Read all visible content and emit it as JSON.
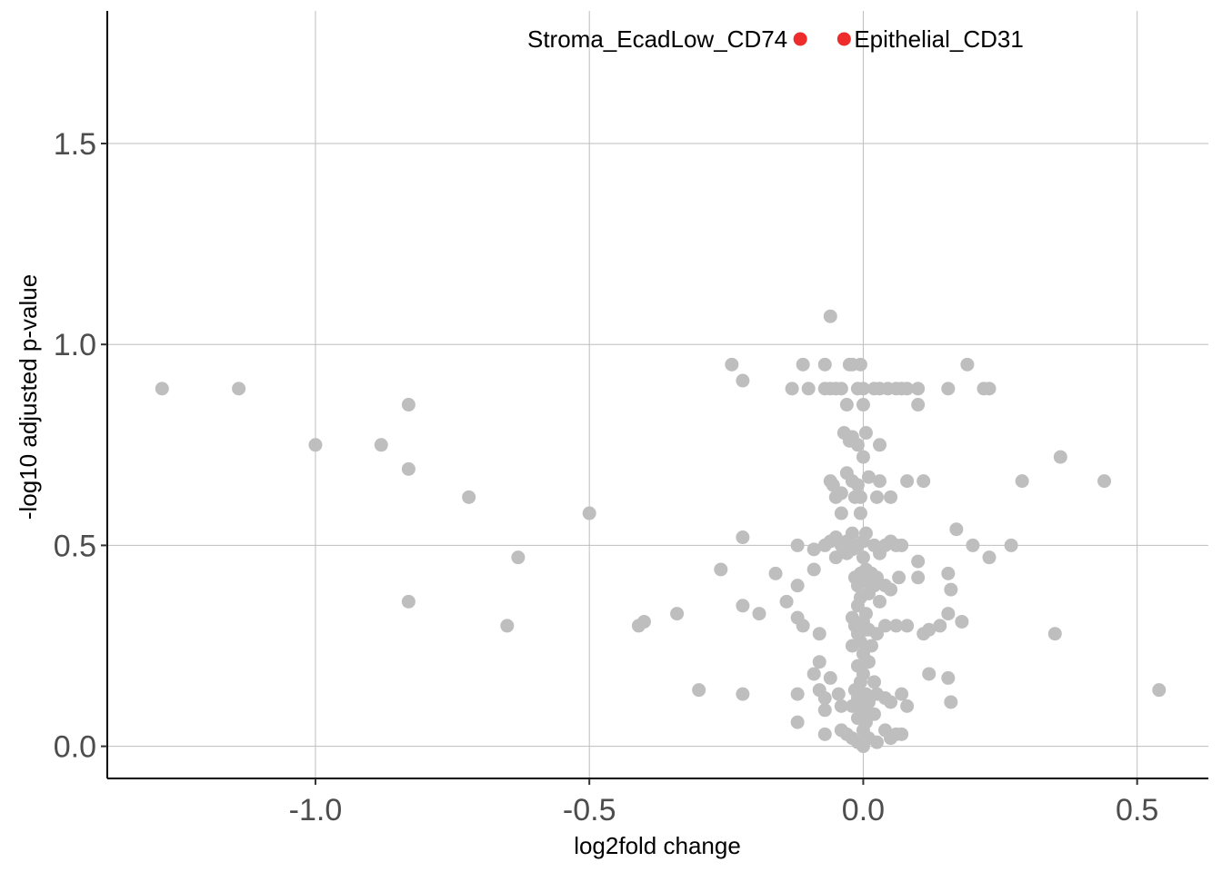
{
  "chart_data": {
    "type": "scatter",
    "xlabel": "log2fold change",
    "ylabel": "-log10 adjusted p-value",
    "xlim": [
      -1.38,
      0.63
    ],
    "ylim": [
      -0.08,
      1.83
    ],
    "x_ticks": [
      -1.0,
      -0.5,
      0.0,
      0.5
    ],
    "x_tick_labels": [
      "-1.0",
      "-0.5",
      "0.0",
      "0.5"
    ],
    "y_ticks": [
      0.0,
      0.5,
      1.0,
      1.5
    ],
    "y_tick_labels": [
      "0.0",
      "0.5",
      "1.0",
      "1.5"
    ],
    "grid": true,
    "colors": {
      "background": "#ffffff",
      "grid": "#bebebe",
      "axis": "#000000",
      "point": "#bebebe",
      "highlight": "#ee2c2c",
      "tick_text": "#4d4d4d"
    },
    "series": [
      {
        "color": "#bebebe",
        "points": [
          [
            -1.28,
            0.89
          ],
          [
            -1.14,
            0.89
          ],
          [
            -1.0,
            0.75
          ],
          [
            -0.88,
            0.75
          ],
          [
            -0.83,
            0.85
          ],
          [
            -0.83,
            0.69
          ],
          [
            -0.83,
            0.36
          ],
          [
            -0.72,
            0.62
          ],
          [
            -0.65,
            0.3
          ],
          [
            -0.63,
            0.47
          ],
          [
            -0.5,
            0.58
          ],
          [
            -0.41,
            0.3
          ],
          [
            -0.4,
            0.31
          ],
          [
            -0.34,
            0.33
          ],
          [
            -0.3,
            0.14
          ],
          [
            -0.26,
            0.44
          ],
          [
            -0.24,
            0.95
          ],
          [
            -0.22,
            0.91
          ],
          [
            -0.22,
            0.52
          ],
          [
            -0.22,
            0.35
          ],
          [
            -0.22,
            0.13
          ],
          [
            -0.19,
            0.33
          ],
          [
            -0.16,
            0.43
          ],
          [
            -0.14,
            0.36
          ],
          [
            -0.13,
            0.89
          ],
          [
            -0.12,
            0.5
          ],
          [
            -0.12,
            0.4
          ],
          [
            -0.12,
            0.32
          ],
          [
            -0.12,
            0.13
          ],
          [
            -0.12,
            0.06
          ],
          [
            -0.11,
            0.95
          ],
          [
            -0.11,
            0.3
          ],
          [
            -0.1,
            0.89
          ],
          [
            -0.09,
            0.49
          ],
          [
            -0.09,
            0.44
          ],
          [
            -0.09,
            0.18
          ],
          [
            -0.08,
            0.28
          ],
          [
            -0.08,
            0.21
          ],
          [
            -0.08,
            0.14
          ],
          [
            -0.07,
            0.95
          ],
          [
            -0.07,
            0.89
          ],
          [
            -0.07,
            0.5
          ],
          [
            -0.07,
            0.12
          ],
          [
            -0.07,
            0.09
          ],
          [
            -0.07,
            0.03
          ],
          [
            -0.06,
            1.07
          ],
          [
            -0.06,
            0.89
          ],
          [
            -0.06,
            0.66
          ],
          [
            -0.06,
            0.51
          ],
          [
            -0.06,
            0.17
          ],
          [
            -0.055,
            0.65
          ],
          [
            -0.05,
            0.89
          ],
          [
            -0.05,
            0.62
          ],
          [
            -0.05,
            0.47
          ],
          [
            -0.05,
            0.52
          ],
          [
            -0.045,
            0.13
          ],
          [
            -0.04,
            0.89
          ],
          [
            -0.04,
            0.63
          ],
          [
            -0.04,
            0.58
          ],
          [
            -0.04,
            0.5
          ],
          [
            -0.04,
            0.1
          ],
          [
            -0.04,
            0.04
          ],
          [
            -0.035,
            0.78
          ],
          [
            -0.03,
            0.85
          ],
          [
            -0.03,
            0.68
          ],
          [
            -0.03,
            0.51
          ],
          [
            -0.03,
            0.48
          ],
          [
            -0.03,
            0.03
          ],
          [
            -0.025,
            0.95
          ],
          [
            -0.025,
            0.76
          ],
          [
            -0.02,
            0.95
          ],
          [
            -0.02,
            0.77
          ],
          [
            -0.02,
            0.66
          ],
          [
            -0.02,
            0.53
          ],
          [
            -0.02,
            0.49
          ],
          [
            -0.02,
            0.32
          ],
          [
            -0.02,
            0.25
          ],
          [
            -0.02,
            0.1
          ],
          [
            -0.02,
            0.02
          ],
          [
            -0.015,
            0.62
          ],
          [
            -0.015,
            0.42
          ],
          [
            -0.015,
            0.3
          ],
          [
            -0.015,
            0.14
          ],
          [
            -0.01,
            0.89
          ],
          [
            -0.01,
            0.75
          ],
          [
            -0.01,
            0.65
          ],
          [
            -0.01,
            0.5
          ],
          [
            -0.01,
            0.4
          ],
          [
            -0.01,
            0.35
          ],
          [
            -0.01,
            0.28
          ],
          [
            -0.01,
            0.2
          ],
          [
            -0.01,
            0.12
          ],
          [
            -0.01,
            0.07
          ],
          [
            -0.01,
            0.01
          ],
          [
            -0.005,
            0.95
          ],
          [
            -0.005,
            0.62
          ],
          [
            -0.005,
            0.58
          ],
          [
            -0.005,
            0.43
          ],
          [
            -0.005,
            0.37
          ],
          [
            -0.005,
            0.26
          ],
          [
            -0.005,
            0.16
          ],
          [
            0.0,
            0.89
          ],
          [
            0.0,
            0.85
          ],
          [
            0.0,
            0.72
          ],
          [
            0.0,
            0.51
          ],
          [
            0.0,
            0.47
          ],
          [
            0.0,
            0.41
          ],
          [
            0.0,
            0.31
          ],
          [
            0.0,
            0.23
          ],
          [
            0.0,
            0.18
          ],
          [
            0.0,
            0.09
          ],
          [
            0.0,
            0.04
          ],
          [
            0.0,
            0.0
          ],
          [
            0.005,
            0.78
          ],
          [
            0.005,
            0.53
          ],
          [
            0.005,
            0.44
          ],
          [
            0.005,
            0.33
          ],
          [
            0.005,
            0.29
          ],
          [
            0.005,
            0.13
          ],
          [
            0.005,
            0.06
          ],
          [
            0.01,
            0.67
          ],
          [
            0.01,
            0.38
          ],
          [
            0.01,
            0.29
          ],
          [
            0.01,
            0.21
          ],
          [
            0.01,
            0.11
          ],
          [
            0.01,
            0.02
          ],
          [
            0.015,
            0.43
          ],
          [
            0.015,
            0.25
          ],
          [
            0.02,
            0.89
          ],
          [
            0.02,
            0.5
          ],
          [
            0.02,
            0.4
          ],
          [
            0.02,
            0.16
          ],
          [
            0.02,
            0.08
          ],
          [
            0.025,
            0.62
          ],
          [
            0.025,
            0.42
          ],
          [
            0.025,
            0.28
          ],
          [
            0.025,
            0.13
          ],
          [
            0.025,
            0.01
          ],
          [
            0.03,
            0.89
          ],
          [
            0.03,
            0.66
          ],
          [
            0.03,
            0.48
          ],
          [
            0.03,
            0.36
          ],
          [
            0.03,
            0.75
          ],
          [
            0.04,
            0.5
          ],
          [
            0.04,
            0.4
          ],
          [
            0.04,
            0.3
          ],
          [
            0.04,
            0.12
          ],
          [
            0.04,
            0.04
          ],
          [
            0.045,
            0.89
          ],
          [
            0.05,
            0.62
          ],
          [
            0.05,
            0.51
          ],
          [
            0.05,
            0.39
          ],
          [
            0.05,
            0.11
          ],
          [
            0.05,
            0.02
          ],
          [
            0.06,
            0.89
          ],
          [
            0.06,
            0.5
          ],
          [
            0.06,
            0.3
          ],
          [
            0.06,
            0.03
          ],
          [
            0.065,
            0.42
          ],
          [
            0.07,
            0.89
          ],
          [
            0.07,
            0.5
          ],
          [
            0.07,
            0.13
          ],
          [
            0.07,
            0.03
          ],
          [
            0.08,
            0.89
          ],
          [
            0.08,
            0.66
          ],
          [
            0.08,
            0.3
          ],
          [
            0.08,
            0.1
          ],
          [
            0.1,
            0.89
          ],
          [
            0.1,
            0.85
          ],
          [
            0.1,
            0.46
          ],
          [
            0.1,
            0.42
          ],
          [
            0.11,
            0.66
          ],
          [
            0.11,
            0.28
          ],
          [
            0.12,
            0.29
          ],
          [
            0.12,
            0.18
          ],
          [
            0.14,
            0.3
          ],
          [
            0.155,
            0.89
          ],
          [
            0.155,
            0.43
          ],
          [
            0.155,
            0.33
          ],
          [
            0.155,
            0.17
          ],
          [
            0.16,
            0.39
          ],
          [
            0.16,
            0.11
          ],
          [
            0.17,
            0.54
          ],
          [
            0.18,
            0.31
          ],
          [
            0.19,
            0.95
          ],
          [
            0.2,
            0.5
          ],
          [
            0.22,
            0.89
          ],
          [
            0.23,
            0.89
          ],
          [
            0.23,
            0.47
          ],
          [
            0.27,
            0.5
          ],
          [
            0.29,
            0.66
          ],
          [
            0.35,
            0.28
          ],
          [
            0.36,
            0.72
          ],
          [
            0.44,
            0.66
          ],
          [
            0.54,
            0.14
          ]
        ]
      },
      {
        "color": "#ee2c2c",
        "points": [
          [
            -0.115,
            1.76
          ],
          [
            -0.035,
            1.76
          ]
        ],
        "labels": [
          "Stroma_EcadLow_CD74",
          "Epithelial_CD31"
        ],
        "label_sides": [
          "left",
          "right"
        ]
      }
    ]
  }
}
